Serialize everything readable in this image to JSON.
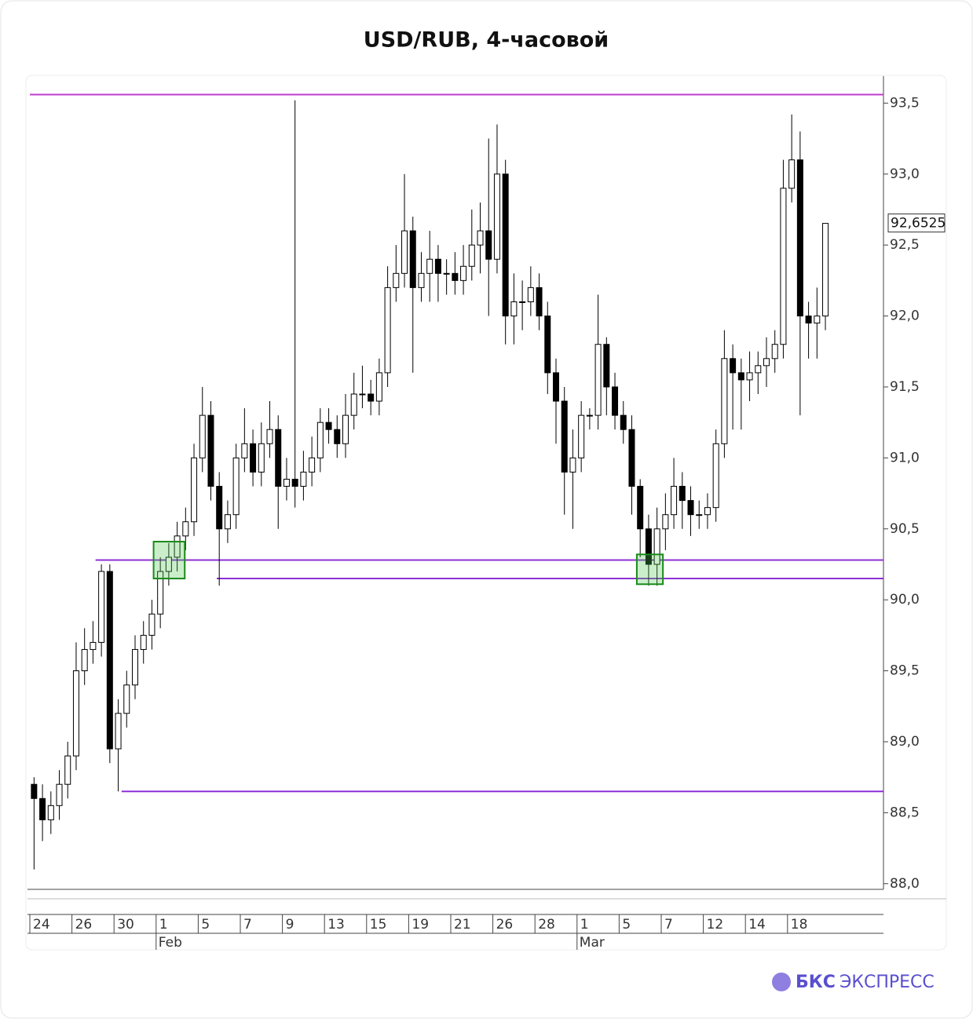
{
  "chart_data": {
    "type": "candlestick",
    "title": "USD/RUB, 4-часовой",
    "series": {
      "open": [
        88.7,
        88.6,
        88.45,
        88.55,
        88.7,
        88.9,
        89.5,
        89.65,
        89.7,
        90.2,
        88.95,
        89.2,
        89.4,
        89.65,
        89.75,
        89.9,
        90.2,
        90.3,
        90.45,
        90.55,
        91.0,
        91.3,
        90.8,
        90.5,
        90.6,
        91.0,
        91.1,
        90.9,
        91.1,
        91.2,
        90.8,
        90.85,
        90.8,
        90.9,
        91.0,
        91.25,
        91.2,
        91.1,
        91.3,
        91.45,
        91.45,
        91.4,
        91.6,
        92.2,
        92.3,
        92.6,
        92.2,
        92.3,
        92.4,
        92.3,
        92.3,
        92.25,
        92.35,
        92.5,
        92.6,
        92.4,
        93.0,
        92.0,
        92.1,
        92.1,
        92.2,
        92.0,
        91.6,
        91.4,
        90.9,
        91.0,
        91.3,
        91.3,
        91.8,
        91.5,
        91.3,
        91.2,
        90.8,
        90.5,
        90.25,
        90.5,
        90.6,
        90.8,
        90.7,
        90.6,
        90.6,
        90.65,
        91.1,
        91.7,
        91.6,
        91.55,
        91.6,
        91.65,
        91.7,
        91.8,
        92.9,
        93.1,
        92.0,
        91.95,
        92.0
      ],
      "high": [
        88.75,
        88.7,
        88.65,
        88.8,
        89.0,
        89.7,
        89.8,
        89.85,
        90.25,
        90.25,
        89.3,
        89.5,
        89.75,
        89.85,
        90.0,
        90.3,
        90.4,
        90.55,
        90.65,
        91.1,
        91.5,
        91.4,
        90.9,
        90.7,
        91.1,
        91.35,
        91.2,
        91.25,
        91.4,
        91.3,
        91.0,
        93.52,
        91.05,
        91.15,
        91.35,
        91.35,
        91.3,
        91.45,
        91.6,
        91.65,
        91.55,
        91.7,
        92.35,
        92.5,
        93.0,
        92.7,
        92.45,
        92.6,
        92.5,
        92.4,
        92.45,
        92.5,
        92.75,
        92.8,
        93.25,
        93.35,
        93.1,
        92.3,
        92.25,
        92.35,
        92.3,
        92.1,
        91.7,
        91.5,
        91.2,
        91.4,
        91.35,
        92.15,
        91.85,
        91.6,
        91.4,
        91.3,
        90.85,
        90.6,
        90.65,
        90.75,
        91.0,
        90.9,
        90.8,
        90.7,
        90.75,
        91.2,
        91.9,
        91.8,
        91.7,
        91.75,
        91.75,
        91.85,
        91.9,
        93.1,
        93.42,
        93.3,
        92.1,
        92.2,
        92.65
      ],
      "low": [
        88.1,
        88.3,
        88.35,
        88.45,
        88.6,
        88.8,
        89.4,
        89.55,
        89.6,
        88.85,
        88.65,
        89.1,
        89.3,
        89.55,
        89.65,
        89.8,
        90.1,
        90.2,
        90.35,
        90.45,
        90.9,
        90.7,
        90.1,
        90.4,
        90.5,
        90.9,
        90.8,
        90.8,
        91.0,
        90.5,
        90.7,
        90.65,
        90.7,
        90.8,
        90.9,
        91.1,
        91.0,
        91.0,
        91.2,
        91.35,
        91.3,
        91.3,
        91.5,
        92.1,
        92.2,
        91.6,
        92.1,
        92.1,
        92.1,
        92.15,
        92.15,
        92.15,
        92.25,
        92.3,
        92.0,
        92.3,
        91.8,
        91.8,
        91.9,
        92.0,
        91.9,
        91.45,
        91.1,
        90.6,
        90.5,
        90.9,
        91.2,
        91.2,
        91.3,
        91.2,
        91.1,
        90.6,
        90.3,
        90.1,
        90.1,
        90.35,
        90.5,
        90.5,
        90.45,
        90.5,
        90.5,
        90.55,
        91.0,
        91.2,
        91.2,
        91.4,
        91.45,
        91.5,
        91.6,
        91.7,
        92.8,
        91.3,
        91.7,
        91.7,
        91.9
      ],
      "close": [
        88.6,
        88.45,
        88.55,
        88.7,
        88.9,
        89.5,
        89.65,
        89.7,
        90.2,
        88.95,
        89.2,
        89.4,
        89.65,
        89.75,
        89.9,
        90.2,
        90.3,
        90.45,
        90.55,
        91.0,
        91.3,
        90.8,
        90.5,
        90.6,
        91.0,
        91.1,
        90.9,
        91.1,
        91.2,
        90.8,
        90.85,
        90.8,
        90.9,
        91.0,
        91.25,
        91.2,
        91.1,
        91.3,
        91.45,
        91.45,
        91.4,
        91.6,
        92.2,
        92.3,
        92.6,
        92.2,
        92.3,
        92.4,
        92.3,
        92.3,
        92.25,
        92.35,
        92.5,
        92.6,
        92.4,
        93.0,
        92.0,
        92.1,
        92.1,
        92.2,
        92.0,
        91.6,
        91.4,
        90.9,
        91.0,
        91.3,
        91.3,
        91.8,
        91.5,
        91.3,
        91.2,
        90.8,
        90.5,
        90.25,
        90.5,
        90.6,
        90.8,
        90.7,
        90.6,
        90.6,
        90.65,
        91.1,
        91.7,
        91.6,
        91.55,
        91.6,
        91.65,
        91.7,
        91.8,
        92.9,
        93.1,
        92.0,
        91.95,
        92.0,
        92.6525
      ]
    },
    "up_color": "#ffffff",
    "down_color": "#000000",
    "last_label": {
      "value": 92.6525,
      "label": "92,6525"
    },
    "levels": [
      {
        "value": 93.56,
        "x_start": 0,
        "color": "#c03ccf"
      },
      {
        "value": 90.28,
        "x_start": 7.8,
        "color": "#8e2fd6"
      },
      {
        "value": 90.15,
        "x_start": 22.2,
        "color": "#8e2fd6"
      },
      {
        "value": 88.65,
        "x_start": 10.9,
        "color": "#8e2fd6"
      }
    ],
    "boxes": [
      {
        "x_range": [
          14.7,
          18.4
        ],
        "y_range": [
          90.15,
          90.41
        ]
      },
      {
        "x_range": [
          72.1,
          75.2
        ],
        "y_range": [
          90.11,
          90.32
        ]
      }
    ],
    "ylim": [
      87.96,
      93.69
    ],
    "yticks": [
      {
        "value": 88,
        "label": "88,0"
      },
      {
        "value": 88.5,
        "label": "88,5"
      },
      {
        "value": 89,
        "label": "89,0"
      },
      {
        "value": 89.5,
        "label": "89,5"
      },
      {
        "value": 90,
        "label": "90,0"
      },
      {
        "value": 90.5,
        "label": "90,5"
      },
      {
        "value": 91,
        "label": "91,0"
      },
      {
        "value": 91.5,
        "label": "91,5"
      },
      {
        "value": 92,
        "label": "92,0"
      },
      {
        "value": 92.5,
        "label": "92,5"
      },
      {
        "value": 93,
        "label": "93,0"
      },
      {
        "value": 93.5,
        "label": "93,5"
      }
    ],
    "xlim": [
      0,
      101.4
    ],
    "xticks": [
      {
        "value": 0,
        "label": "24"
      },
      {
        "value": 5,
        "label": "26"
      },
      {
        "value": 10,
        "label": "30"
      },
      {
        "value": 15,
        "label": "1"
      },
      {
        "value": 20,
        "label": "5"
      },
      {
        "value": 25,
        "label": "7"
      },
      {
        "value": 30,
        "label": "9"
      },
      {
        "value": 35,
        "label": "13"
      },
      {
        "value": 40,
        "label": "15"
      },
      {
        "value": 45,
        "label": "19"
      },
      {
        "value": 50,
        "label": "21"
      },
      {
        "value": 55,
        "label": "26"
      },
      {
        "value": 60,
        "label": "28"
      },
      {
        "value": 65,
        "label": "1"
      },
      {
        "value": 70,
        "label": "5"
      },
      {
        "value": 75,
        "label": "7"
      },
      {
        "value": 80,
        "label": "12"
      },
      {
        "value": 85,
        "label": "14"
      },
      {
        "value": 90,
        "label": "18"
      }
    ],
    "month_ticks": [
      {
        "value": 15,
        "label": "Feb"
      },
      {
        "value": 65,
        "label": "Mar"
      }
    ]
  },
  "brand": {
    "name": [
      "БКС",
      "ЭКСПРЕСС"
    ]
  }
}
